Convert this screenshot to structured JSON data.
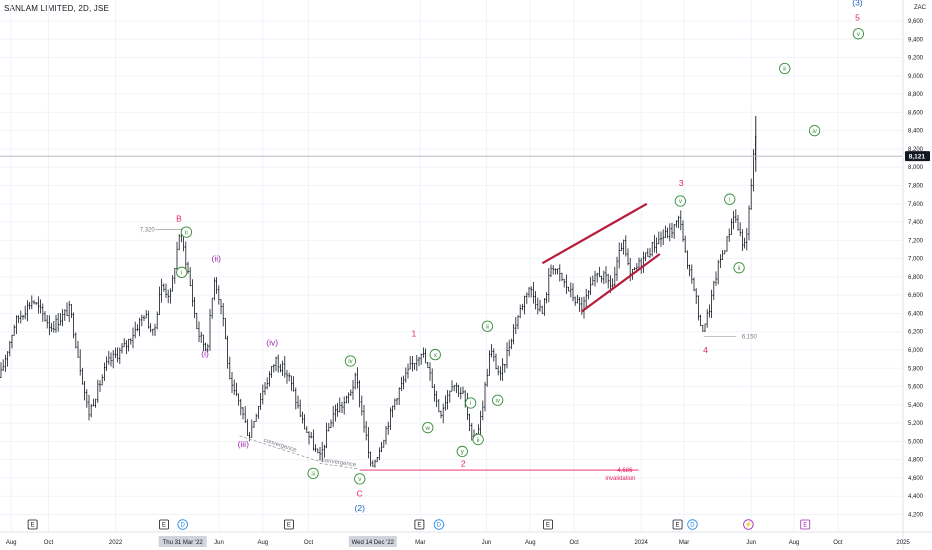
{
  "header": {
    "title": "SANLAM LIMITED, 2D, JSE",
    "currency": "ZAC"
  },
  "chart_data": {
    "type": "candlestick",
    "title": "SANLAM LIMITED, 2D, JSE",
    "ylim": [
      4100,
      9900
    ],
    "y_ticks": [
      {
        "value": 9600,
        "label": "9,600"
      },
      {
        "value": 9400,
        "label": "9,400"
      },
      {
        "value": 9200,
        "label": "9,200"
      },
      {
        "value": 9000,
        "label": "9,000"
      },
      {
        "value": 8800,
        "label": "8,800"
      },
      {
        "value": 8600,
        "label": "8,600"
      },
      {
        "value": 8400,
        "label": "8,400"
      },
      {
        "value": 8200,
        "label": "8,200"
      },
      {
        "value": 8000,
        "label": "8,000"
      },
      {
        "value": 7800,
        "label": "7,800"
      },
      {
        "value": 7600,
        "label": "7,600"
      },
      {
        "value": 7400,
        "label": "7,400"
      },
      {
        "value": 7200,
        "label": "7,200"
      },
      {
        "value": 7000,
        "label": "7,000"
      },
      {
        "value": 6800,
        "label": "6,800"
      },
      {
        "value": 6600,
        "label": "6,600"
      },
      {
        "value": 6400,
        "label": "6,400"
      },
      {
        "value": 6200,
        "label": "6,200"
      },
      {
        "value": 6000,
        "label": "6,000"
      },
      {
        "value": 5800,
        "label": "5,800"
      },
      {
        "value": 5600,
        "label": "5,600"
      },
      {
        "value": 5400,
        "label": "5,400"
      },
      {
        "value": 5200,
        "label": "5,200"
      },
      {
        "value": 5000,
        "label": "5,000"
      },
      {
        "value": 4800,
        "label": "4,800"
      },
      {
        "value": 4600,
        "label": "4,600"
      },
      {
        "value": 4400,
        "label": "4,400"
      },
      {
        "value": 4200,
        "label": "4,200"
      }
    ],
    "x_ticks": [
      {
        "t": 0.012,
        "label": "Aug"
      },
      {
        "t": 0.052,
        "label": "Oct"
      },
      {
        "t": 0.124,
        "label": "2022"
      },
      {
        "t": 0.235,
        "label": "Jun"
      },
      {
        "t": 0.282,
        "label": "Aug"
      },
      {
        "t": 0.331,
        "label": "Oct"
      },
      {
        "t": 0.451,
        "label": "Mar"
      },
      {
        "t": 0.522,
        "label": "Jun"
      },
      {
        "t": 0.569,
        "label": "Aug"
      },
      {
        "t": 0.616,
        "label": "Oct"
      },
      {
        "t": 0.688,
        "label": "2024"
      },
      {
        "t": 0.734,
        "label": "Mar"
      },
      {
        "t": 0.806,
        "label": "Jun"
      },
      {
        "t": 0.852,
        "label": "Aug"
      },
      {
        "t": 0.899,
        "label": "Oct"
      },
      {
        "t": 0.969,
        "label": "2025"
      }
    ],
    "x_highlights": [
      {
        "t": 0.196,
        "label": "Thu 31 Mar '22"
      },
      {
        "t": 0.4,
        "label": "Wed 14 Dec '22"
      }
    ],
    "current_price": {
      "value": 8121,
      "label": "8,121"
    },
    "anchors": [
      {
        "t": 0.0,
        "v": 5700
      },
      {
        "t": 0.016,
        "v": 6300
      },
      {
        "t": 0.035,
        "v": 6550
      },
      {
        "t": 0.055,
        "v": 6250
      },
      {
        "t": 0.075,
        "v": 6450
      },
      {
        "t": 0.095,
        "v": 5300
      },
      {
        "t": 0.115,
        "v": 5850
      },
      {
        "t": 0.135,
        "v": 6050
      },
      {
        "t": 0.155,
        "v": 6400
      },
      {
        "t": 0.165,
        "v": 6150
      },
      {
        "t": 0.172,
        "v": 6700
      },
      {
        "t": 0.183,
        "v": 6600
      },
      {
        "t": 0.193,
        "v": 7320
      },
      {
        "t": 0.201,
        "v": 6900
      },
      {
        "t": 0.212,
        "v": 6200
      },
      {
        "t": 0.222,
        "v": 6000
      },
      {
        "t": 0.23,
        "v": 6800
      },
      {
        "t": 0.239,
        "v": 6400
      },
      {
        "t": 0.247,
        "v": 5600
      },
      {
        "t": 0.258,
        "v": 5400
      },
      {
        "t": 0.267,
        "v": 5050
      },
      {
        "t": 0.28,
        "v": 5500
      },
      {
        "t": 0.296,
        "v": 5900
      },
      {
        "t": 0.31,
        "v": 5700
      },
      {
        "t": 0.325,
        "v": 5200
      },
      {
        "t": 0.343,
        "v": 4800
      },
      {
        "t": 0.357,
        "v": 5300
      },
      {
        "t": 0.372,
        "v": 5450
      },
      {
        "t": 0.382,
        "v": 5700
      },
      {
        "t": 0.392,
        "v": 5100
      },
      {
        "t": 0.398,
        "v": 4690
      },
      {
        "t": 0.41,
        "v": 5000
      },
      {
        "t": 0.425,
        "v": 5500
      },
      {
        "t": 0.44,
        "v": 5800
      },
      {
        "t": 0.452,
        "v": 6000
      },
      {
        "t": 0.462,
        "v": 5700
      },
      {
        "t": 0.472,
        "v": 5300
      },
      {
        "t": 0.485,
        "v": 5650
      },
      {
        "t": 0.498,
        "v": 5500
      },
      {
        "t": 0.506,
        "v": 5000
      },
      {
        "t": 0.515,
        "v": 5200
      },
      {
        "t": 0.526,
        "v": 6000
      },
      {
        "t": 0.537,
        "v": 5700
      },
      {
        "t": 0.55,
        "v": 6200
      },
      {
        "t": 0.567,
        "v": 6700
      },
      {
        "t": 0.582,
        "v": 6400
      },
      {
        "t": 0.592,
        "v": 6950
      },
      {
        "t": 0.604,
        "v": 6750
      },
      {
        "t": 0.624,
        "v": 6450
      },
      {
        "t": 0.642,
        "v": 6850
      },
      {
        "t": 0.657,
        "v": 6700
      },
      {
        "t": 0.668,
        "v": 7200
      },
      {
        "t": 0.676,
        "v": 6800
      },
      {
        "t": 0.69,
        "v": 7000
      },
      {
        "t": 0.705,
        "v": 7200
      },
      {
        "t": 0.72,
        "v": 7300
      },
      {
        "t": 0.73,
        "v": 7450
      },
      {
        "t": 0.737,
        "v": 6900
      },
      {
        "t": 0.745,
        "v": 6700
      },
      {
        "t": 0.752,
        "v": 6200
      },
      {
        "t": 0.76,
        "v": 6400
      },
      {
        "t": 0.77,
        "v": 6900
      },
      {
        "t": 0.78,
        "v": 7200
      },
      {
        "t": 0.787,
        "v": 7500
      },
      {
        "t": 0.793,
        "v": 7300
      },
      {
        "t": 0.8,
        "v": 7100
      },
      {
        "t": 0.806,
        "v": 7800
      },
      {
        "t": 0.81,
        "v": 8400
      },
      {
        "t": 0.812,
        "v": 8121
      }
    ],
    "invalidation": {
      "value": 4686,
      "label": "4,686",
      "text": "invalidation"
    },
    "level_labels": [
      {
        "value": 7320,
        "label": "7,320"
      },
      {
        "value": 6150,
        "label": "6,150"
      }
    ],
    "convergence_labels": [
      "convergence",
      "convergence"
    ],
    "wave_labels": [
      {
        "text": "B",
        "t": 0.192,
        "v": 7440,
        "kind": "plain",
        "color": "#e91e63"
      },
      {
        "text": "ii",
        "t": 0.2,
        "v": 7290,
        "kind": "circle",
        "color": "#388e3c"
      },
      {
        "text": "i",
        "t": 0.195,
        "v": 6850,
        "kind": "circle",
        "color": "#388e3c"
      },
      {
        "text": "(ii)",
        "t": 0.232,
        "v": 7000,
        "kind": "plain",
        "color": "#9c27b0"
      },
      {
        "text": "(i)",
        "t": 0.22,
        "v": 5960,
        "kind": "plain",
        "color": "#9c27b0"
      },
      {
        "text": "(iv)",
        "t": 0.292,
        "v": 6080,
        "kind": "plain",
        "color": "#9c27b0"
      },
      {
        "text": "(iii)",
        "t": 0.261,
        "v": 4970,
        "kind": "plain",
        "color": "#9c27b0"
      },
      {
        "text": "iii",
        "t": 0.336,
        "v": 4650,
        "kind": "circle",
        "color": "#388e3c"
      },
      {
        "text": "iv",
        "t": 0.376,
        "v": 5880,
        "kind": "circle",
        "color": "#388e3c"
      },
      {
        "text": "v",
        "t": 0.386,
        "v": 4590,
        "kind": "circle",
        "color": "#388e3c"
      },
      {
        "text": "C",
        "t": 0.386,
        "v": 4430,
        "kind": "plain",
        "color": "#e91e63"
      },
      {
        "text": "(2)",
        "t": 0.386,
        "v": 4270,
        "kind": "plain",
        "color": "#1565c0"
      },
      {
        "text": "1",
        "t": 0.444,
        "v": 6180,
        "kind": "plain",
        "color": "#e91e63"
      },
      {
        "text": "x",
        "t": 0.467,
        "v": 5950,
        "kind": "circle",
        "color": "#388e3c"
      },
      {
        "text": "w",
        "t": 0.459,
        "v": 5150,
        "kind": "circle",
        "color": "#388e3c"
      },
      {
        "text": "iii",
        "t": 0.523,
        "v": 6260,
        "kind": "circle",
        "color": "#388e3c"
      },
      {
        "text": "i",
        "t": 0.505,
        "v": 5420,
        "kind": "circle",
        "color": "#388e3c"
      },
      {
        "text": "iv",
        "t": 0.534,
        "v": 5450,
        "kind": "circle",
        "color": "#388e3c"
      },
      {
        "text": "ii",
        "t": 0.513,
        "v": 5020,
        "kind": "circle",
        "color": "#388e3c"
      },
      {
        "text": "y",
        "t": 0.496,
        "v": 4890,
        "kind": "circle",
        "color": "#388e3c"
      },
      {
        "text": "2",
        "t": 0.497,
        "v": 4760,
        "kind": "plain",
        "color": "#e91e63"
      },
      {
        "text": "3",
        "t": 0.731,
        "v": 7830,
        "kind": "plain",
        "color": "#e91e63"
      },
      {
        "text": "v",
        "t": 0.73,
        "v": 7630,
        "kind": "circle",
        "color": "#388e3c"
      },
      {
        "text": "4",
        "t": 0.757,
        "v": 6000,
        "kind": "plain",
        "color": "#e91e63"
      },
      {
        "text": "i",
        "t": 0.783,
        "v": 7650,
        "kind": "circle",
        "color": "#388e3c"
      },
      {
        "text": "ii",
        "t": 0.793,
        "v": 6900,
        "kind": "circle",
        "color": "#388e3c"
      },
      {
        "text": "iii",
        "t": 0.842,
        "v": 9080,
        "kind": "circle",
        "color": "#388e3c"
      },
      {
        "text": "iv",
        "t": 0.874,
        "v": 8400,
        "kind": "circle",
        "color": "#388e3c"
      },
      {
        "text": "(3)",
        "t": 0.92,
        "v": 9800,
        "kind": "plain",
        "color": "#1565c0"
      },
      {
        "text": "5",
        "t": 0.92,
        "v": 9640,
        "kind": "plain",
        "color": "#e91e63"
      },
      {
        "text": "v",
        "t": 0.921,
        "v": 9460,
        "kind": "circle",
        "color": "#388e3c"
      }
    ],
    "wedge": {
      "upper": [
        [
          0.582,
          6950
        ],
        [
          0.694,
          7600
        ]
      ],
      "lower": [
        [
          0.624,
          6420
        ],
        [
          0.708,
          7050
        ]
      ]
    },
    "convergence_lines": [
      [
        [
          0.257,
          5060
        ],
        [
          0.343,
          4780
        ]
      ],
      [
        [
          0.343,
          4760
        ],
        [
          0.384,
          4700
        ]
      ]
    ],
    "events": [
      {
        "t": 0.035,
        "label": "E",
        "kind": "square",
        "color": "#131722"
      },
      {
        "t": 0.176,
        "label": "E",
        "kind": "square",
        "color": "#131722"
      },
      {
        "t": 0.196,
        "label": "D",
        "kind": "circle",
        "color": "#1e88e5"
      },
      {
        "t": 0.31,
        "label": "E",
        "kind": "square",
        "color": "#131722"
      },
      {
        "t": 0.45,
        "label": "E",
        "kind": "square",
        "color": "#131722"
      },
      {
        "t": 0.471,
        "label": "D",
        "kind": "circle",
        "color": "#1e88e5"
      },
      {
        "t": 0.588,
        "label": "E",
        "kind": "square",
        "color": "#131722"
      },
      {
        "t": 0.727,
        "label": "E",
        "kind": "square",
        "color": "#131722"
      },
      {
        "t": 0.743,
        "label": "D",
        "kind": "circle",
        "color": "#1e88e5"
      },
      {
        "t": 0.803,
        "label": "⚡",
        "kind": "circle",
        "color": "#9c27b0"
      },
      {
        "t": 0.864,
        "label": "E",
        "kind": "square",
        "color": "#9c27b0"
      }
    ],
    "colors": {
      "bars": "#131722",
      "wedge": "#b71c3c",
      "invalidation": "#e91e63",
      "grid": "#f0f3fa",
      "price_badge": "#131722"
    }
  }
}
